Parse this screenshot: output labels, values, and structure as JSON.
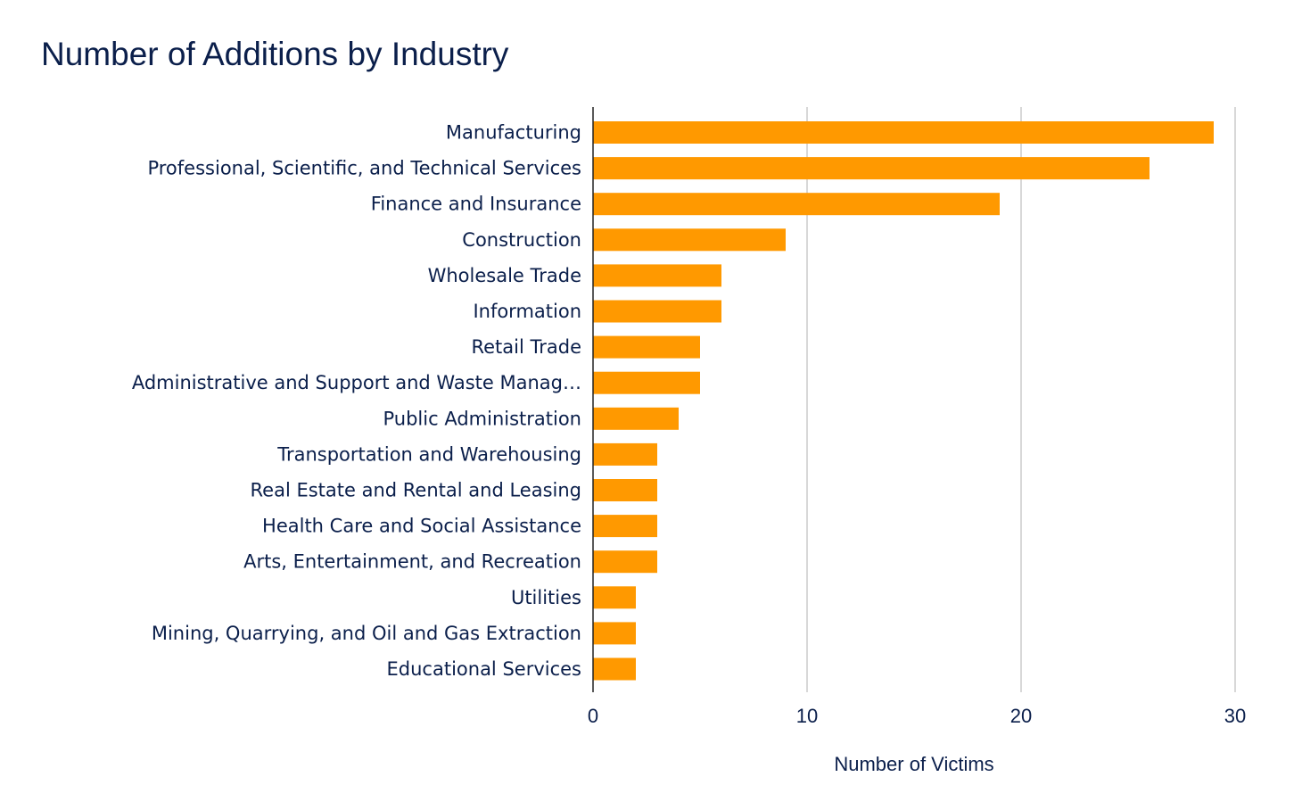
{
  "chart_data": {
    "type": "bar",
    "orientation": "horizontal",
    "title": "Number of Additions by Industry",
    "xlabel": "Number of Victims",
    "ylabel": "",
    "xlim": [
      0,
      31
    ],
    "x_ticks": [
      0,
      10,
      20,
      30
    ],
    "grid": true,
    "legend": "none",
    "bar_color": "#ff9900",
    "categories": [
      "Manufacturing",
      "Professional, Scientific, and Technical Services",
      "Finance and Insurance",
      "Construction",
      "Wholesale Trade",
      "Information",
      "Retail Trade",
      "Administrative and Support and Waste Manag…",
      "Public Administration",
      "Transportation and Warehousing",
      "Real Estate and Rental and Leasing",
      "Health Care and Social Assistance",
      "Arts, Entertainment, and Recreation",
      "Utilities",
      "Mining, Quarrying, and Oil and Gas Extraction",
      "Educational Services"
    ],
    "values": [
      29,
      26,
      19,
      9,
      6,
      6,
      5,
      5,
      4,
      3,
      3,
      3,
      3,
      2,
      2,
      2
    ]
  }
}
